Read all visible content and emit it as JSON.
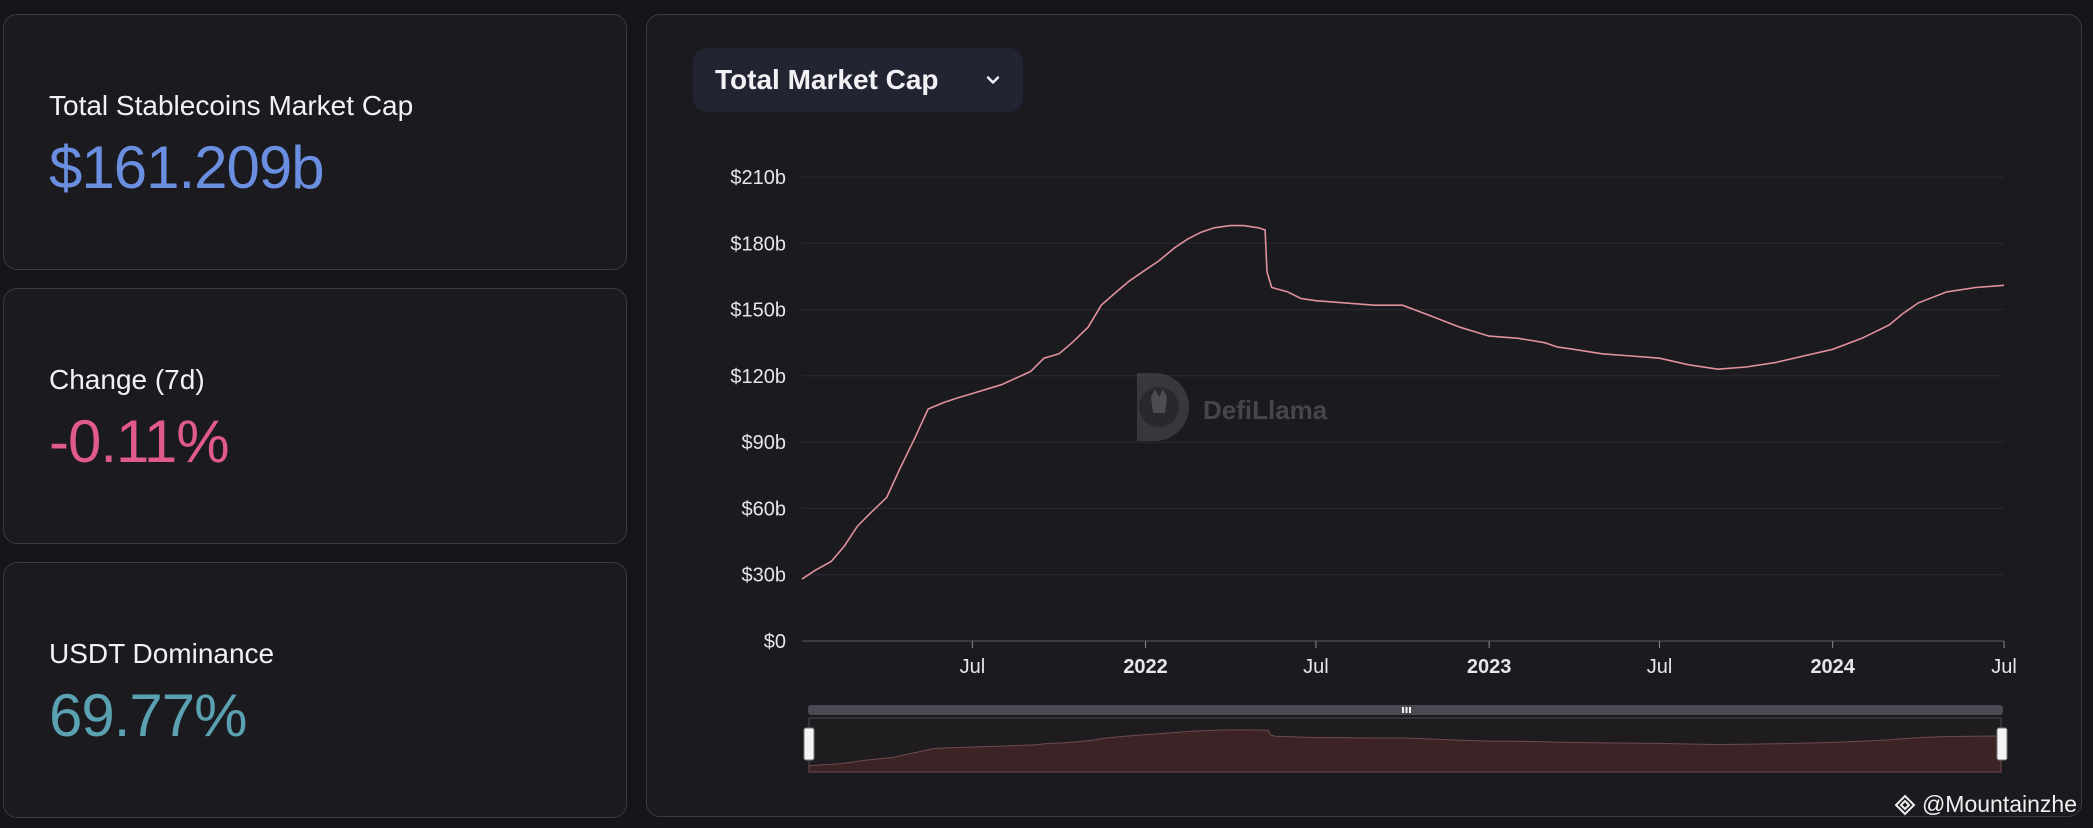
{
  "stats": {
    "market_cap": {
      "title": "Total Stablecoins Market Cap",
      "value": "$161.209b",
      "color": "#6b8fe0"
    },
    "change": {
      "title": "Change (7d)",
      "value": "-0.11%",
      "color": "#e05a8a"
    },
    "dominance": {
      "title": "USDT Dominance",
      "value": "69.77%",
      "color": "#5aa1b1"
    }
  },
  "chart_panel": {
    "dropdown_label": "Total Market Cap",
    "logo_text": "DefiLlama"
  },
  "watermark": "@Mountainzhe",
  "colors": {
    "line": "#e0919c",
    "brush_fill": "#3c2426"
  },
  "chart_data": {
    "type": "line",
    "xlabel": "",
    "ylabel": "",
    "ylim": [
      0,
      210
    ],
    "y_unit": "billion USD",
    "y_ticks": [
      {
        "value": 0,
        "label": "$0"
      },
      {
        "value": 30,
        "label": "$30b"
      },
      {
        "value": 60,
        "label": "$60b"
      },
      {
        "value": 90,
        "label": "$90b"
      },
      {
        "value": 120,
        "label": "$120b"
      },
      {
        "value": 150,
        "label": "$150b"
      },
      {
        "value": 180,
        "label": "$180b"
      },
      {
        "value": 210,
        "label": "$210b"
      }
    ],
    "xlim": [
      "2021-01-01",
      "2024-07-01"
    ],
    "x_ticks": [
      {
        "date": "2021-07-01",
        "label": "Jul",
        "bold": false
      },
      {
        "date": "2022-01-01",
        "label": "2022",
        "bold": true
      },
      {
        "date": "2022-07-01",
        "label": "Jul",
        "bold": false
      },
      {
        "date": "2023-01-01",
        "label": "2023",
        "bold": true
      },
      {
        "date": "2023-07-01",
        "label": "Jul",
        "bold": false
      },
      {
        "date": "2024-01-01",
        "label": "2024",
        "bold": true
      },
      {
        "date": "2024-07-01",
        "label": "Jul",
        "bold": false
      }
    ],
    "grid": true,
    "series": [
      {
        "x": [
          "2021-01-01",
          "2021-01-15",
          "2021-02-01",
          "2021-02-15",
          "2021-03-01",
          "2021-03-15",
          "2021-04-01",
          "2021-04-15",
          "2021-05-01",
          "2021-05-15",
          "2021-06-01",
          "2021-06-15",
          "2021-07-01",
          "2021-08-01",
          "2021-09-01",
          "2021-09-15",
          "2021-10-01",
          "2021-10-15",
          "2021-11-01",
          "2021-11-15",
          "2021-12-01",
          "2021-12-15",
          "2022-01-01",
          "2022-01-15",
          "2022-02-01",
          "2022-02-15",
          "2022-03-01",
          "2022-03-15",
          "2022-04-01",
          "2022-04-15",
          "2022-05-01",
          "2022-05-08",
          "2022-05-10",
          "2022-05-15",
          "2022-06-01",
          "2022-06-15",
          "2022-07-01",
          "2022-08-01",
          "2022-09-01",
          "2022-10-01",
          "2022-11-01",
          "2022-12-01",
          "2023-01-01",
          "2023-02-01",
          "2023-03-01",
          "2023-03-15",
          "2023-04-01",
          "2023-05-01",
          "2023-06-01",
          "2023-07-01",
          "2023-08-01",
          "2023-09-01",
          "2023-10-01",
          "2023-11-01",
          "2023-12-01",
          "2024-01-01",
          "2024-02-01",
          "2024-03-01",
          "2024-03-15",
          "2024-04-01",
          "2024-05-01",
          "2024-06-01",
          "2024-07-01"
        ],
        "y": [
          28,
          32,
          36,
          43,
          52,
          58,
          65,
          78,
          92,
          105,
          108,
          110,
          112,
          116,
          122,
          128,
          130,
          135,
          142,
          152,
          158,
          163,
          168,
          172,
          178,
          182,
          185,
          187,
          188,
          188,
          187,
          186,
          167,
          160,
          158,
          155,
          154,
          153,
          152,
          152,
          147,
          142,
          138,
          137,
          135,
          133,
          132,
          130,
          129,
          128,
          125,
          123,
          124,
          126,
          129,
          132,
          137,
          143,
          148,
          153,
          158,
          160,
          161
        ]
      }
    ]
  }
}
